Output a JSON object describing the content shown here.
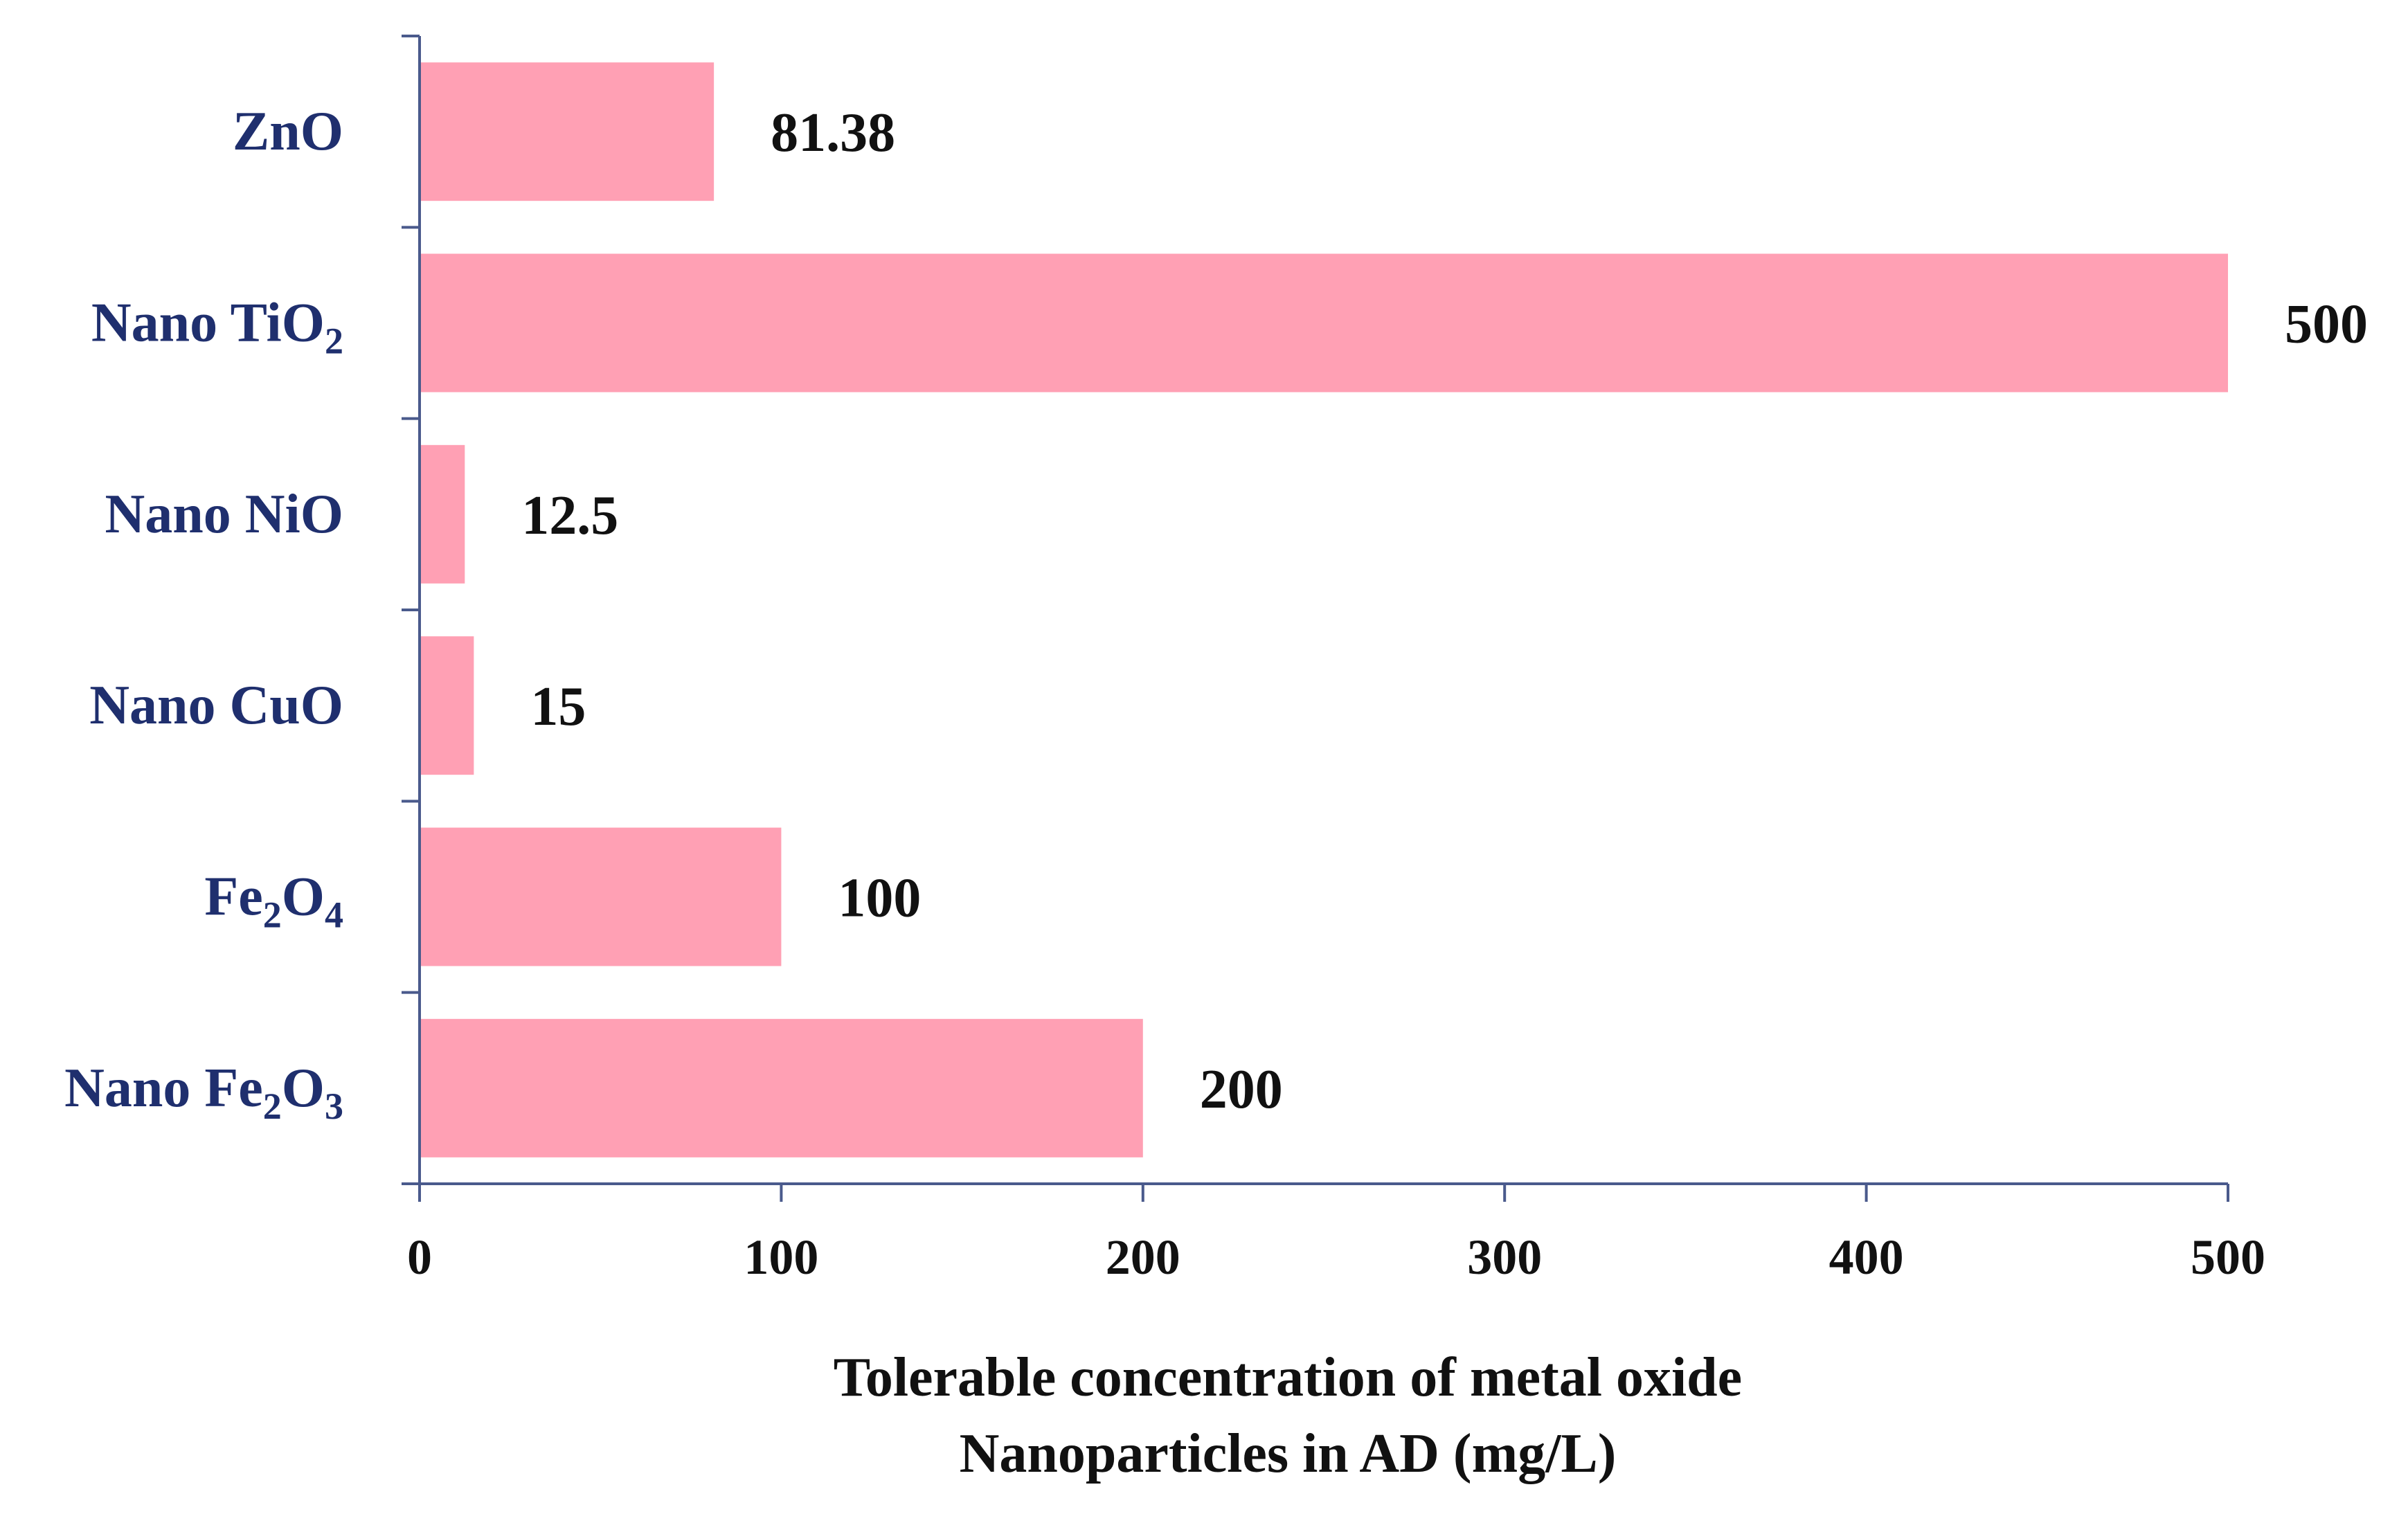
{
  "chart_data": {
    "type": "bar",
    "orientation": "horizontal",
    "categories": [
      {
        "name": "ZnO",
        "base": "ZnO",
        "sub": "",
        "tail": ""
      },
      {
        "name": "Nano TiO2",
        "base": "Nano TiO",
        "sub": "2",
        "tail": ""
      },
      {
        "name": "Nano NiO",
        "base": "Nano NiO",
        "sub": "",
        "tail": ""
      },
      {
        "name": "Nano CuO",
        "base": "Nano CuO",
        "sub": "",
        "tail": ""
      },
      {
        "name": "Fe2O4",
        "base": "Fe",
        "sub": "2",
        "tail": "O",
        "sub2": "4"
      },
      {
        "name": "Nano Fe2O3",
        "base": "Nano Fe",
        "sub": "2",
        "tail": "O",
        "sub2": "3"
      }
    ],
    "values": [
      81.38,
      500,
      12.5,
      15,
      100,
      200
    ],
    "value_labels": [
      "81.38",
      "500",
      "12.5",
      "15",
      "100",
      "200"
    ],
    "xlim": [
      0,
      500
    ],
    "xticks": [
      0,
      100,
      200,
      300,
      400,
      500
    ],
    "xtick_labels": [
      "0",
      "100",
      "200",
      "300",
      "400",
      "500"
    ],
    "xlabel_lines": [
      "Tolerable  concentration  of metal oxide",
      "Nanoparticles  in AD  (mg/L)"
    ],
    "title": "",
    "grid": false,
    "legend": "none"
  },
  "colors": {
    "bar": "#FFA0B4",
    "axis": "#4A5A8C",
    "category_text": "#1F2F6E",
    "text": "#111111"
  }
}
